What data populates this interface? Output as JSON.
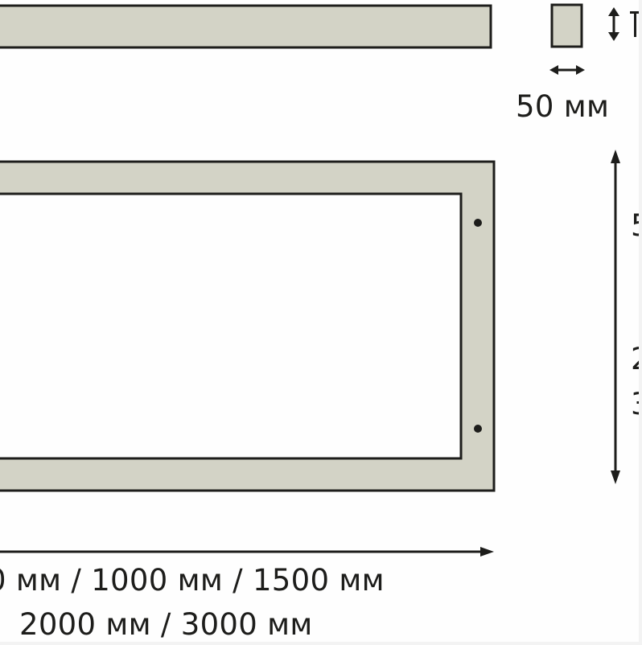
{
  "colors": {
    "panel_fill": "#d3d3c6",
    "stroke": "#1d1d1b",
    "background": "#fefefe"
  },
  "labels": {
    "width": "50 мм",
    "lengths_line1": "0 мм / 1000 мм / 1500 мм",
    "lengths_line2": "2000 мм / 3000 мм",
    "height_clipped": "5",
    "height_clipped_2": "2",
    "height_clipped_3": "3"
  },
  "icons": {
    "small_vertical_arrow": "double-arrow-vertical-icon",
    "small_horizontal_arrow": "double-arrow-horizontal-icon",
    "long_vertical_arrow": "height-arrow-icon",
    "long_horizontal_arrow": "length-arrow-icon"
  }
}
